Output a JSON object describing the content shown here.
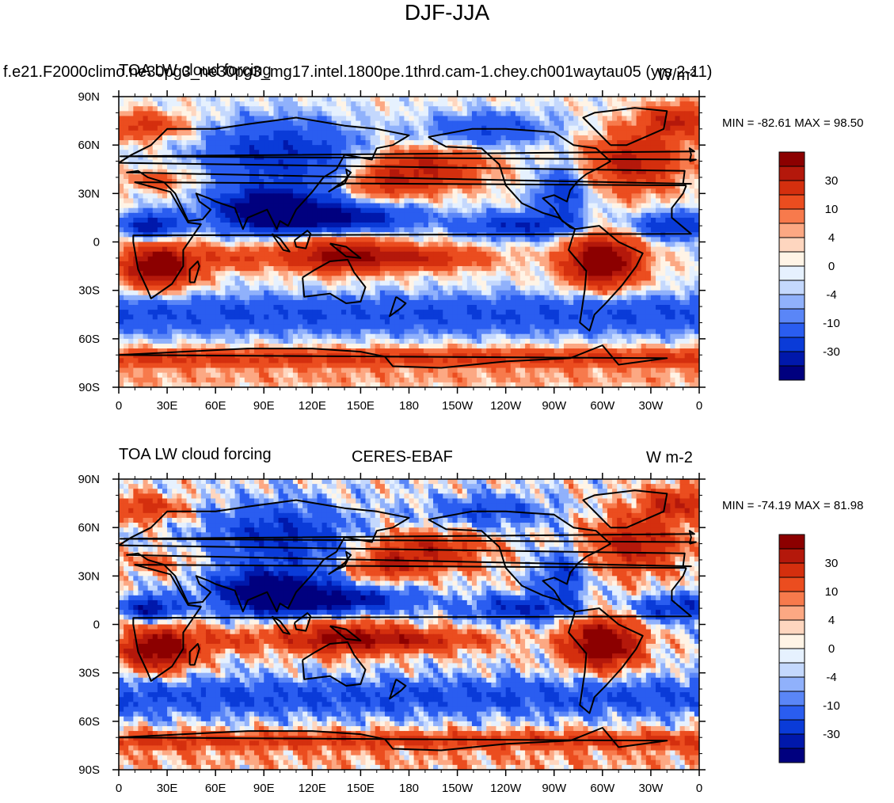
{
  "figure_title": "DJF-JJA",
  "panel1": {
    "left_title": "TOA LW cloud forcing",
    "center_title": "f.e21.F2000climo.ne30pg3_ne30pg3_mg17.intel.1800pe.1thrd.cam-1.chey.ch001waytau05 (yrs 2-11)",
    "units": "W/m²",
    "minmax": "MIN = -82.61 MAX =  98.50"
  },
  "panel2": {
    "left_title": "TOA LW cloud forcing",
    "center_title": "CERES-EBAF",
    "units": "W m-2",
    "minmax": "MIN = -74.19 MAX =  81.98"
  },
  "colors": {
    "levels": [
      "#00007f",
      "#0018ab",
      "#0a3bd8",
      "#2a5df0",
      "#5a86f7",
      "#90b1fb",
      "#c4d8fd",
      "#e6f1fe",
      "#fff4e6",
      "#fed6bf",
      "#fca883",
      "#f77a4c",
      "#eb4d1f",
      "#d42f0e",
      "#b4180b",
      "#8c0000"
    ],
    "outline": "#000000"
  },
  "chart_data": [
    {
      "type": "heatmap",
      "title": "TOA LW cloud forcing — model DJF-JJA",
      "projection": "cylindrical equidistant",
      "x_tick_labels": [
        "0",
        "30E",
        "60E",
        "90E",
        "120E",
        "150E",
        "180",
        "150W",
        "120W",
        "90W",
        "60W",
        "30W",
        "0"
      ],
      "y_tick_labels": [
        "90N",
        "60N",
        "30N",
        "0",
        "30S",
        "60S",
        "90S"
      ],
      "xlim": [
        0,
        360
      ],
      "ylim": [
        -90,
        90
      ],
      "colorbar_labels": [
        "30",
        "10",
        "4",
        "0",
        "-4",
        "-10",
        "-30"
      ],
      "min": -82.61,
      "max": 98.5
    },
    {
      "type": "heatmap",
      "title": "TOA LW cloud forcing — CERES-EBAF DJF-JJA",
      "projection": "cylindrical equidistant",
      "x_tick_labels": [
        "0",
        "30E",
        "60E",
        "90E",
        "120E",
        "150E",
        "180",
        "150W",
        "120W",
        "90W",
        "60W",
        "30W",
        "0"
      ],
      "y_tick_labels": [
        "90N",
        "60N",
        "30N",
        "0",
        "30S",
        "60S",
        "90S"
      ],
      "xlim": [
        0,
        360
      ],
      "ylim": [
        -90,
        90
      ],
      "colorbar_labels": [
        "30",
        "10",
        "4",
        "0",
        "-4",
        "-10",
        "-30"
      ],
      "min": -74.19,
      "max": 81.98
    }
  ]
}
